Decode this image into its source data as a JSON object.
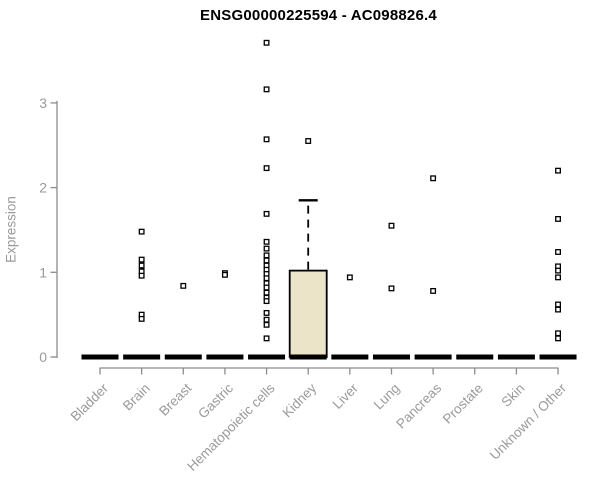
{
  "chart_data": {
    "type": "boxplot",
    "title": "ENSG00000225594 - AC098826.4",
    "ylabel": "Expression",
    "xlabel": "",
    "ylim": [
      0,
      3.75
    ],
    "yticks": [
      0,
      1,
      2,
      3
    ],
    "grid": false,
    "legend": "none",
    "categories": [
      "Bladder",
      "Brain",
      "Breast",
      "Gastric",
      "Hematopoietic cells",
      "Kidney",
      "Liver",
      "Lung",
      "Pancreas",
      "Prostate",
      "Skin",
      "Unknown / Other"
    ],
    "series": [
      {
        "category": "Bladder",
        "q1": 0,
        "median": 0,
        "q3": 0,
        "whisker_low": 0,
        "whisker_high": 0,
        "outliers": []
      },
      {
        "category": "Brain",
        "q1": 0,
        "median": 0,
        "q3": 0,
        "whisker_low": 0,
        "whisker_high": 0,
        "outliers": [
          1.48,
          1.15,
          1.08,
          1.01,
          0.96,
          0.5,
          0.45
        ]
      },
      {
        "category": "Breast",
        "q1": 0,
        "median": 0,
        "q3": 0,
        "whisker_low": 0,
        "whisker_high": 0,
        "outliers": [
          0.84
        ]
      },
      {
        "category": "Gastric",
        "q1": 0,
        "median": 0,
        "q3": 0,
        "whisker_low": 0,
        "whisker_high": 0,
        "outliers": [
          0.99,
          0.97
        ]
      },
      {
        "category": "Hematopoietic cells",
        "q1": 0,
        "median": 0,
        "q3": 0,
        "whisker_low": 0,
        "whisker_high": 0,
        "outliers": [
          3.71,
          3.16,
          2.57,
          2.23,
          1.69,
          1.36,
          1.28,
          1.2,
          1.14,
          1.08,
          1.03,
          0.98,
          0.93,
          0.87,
          0.82,
          0.76,
          0.7,
          0.66,
          0.52,
          0.44,
          0.38,
          0.22
        ]
      },
      {
        "category": "Kidney",
        "q1": 0,
        "median": 0,
        "q3": 1.02,
        "whisker_low": 0,
        "whisker_high": 1.85,
        "outliers": [
          2.55
        ]
      },
      {
        "category": "Liver",
        "q1": 0,
        "median": 0,
        "q3": 0,
        "whisker_low": 0,
        "whisker_high": 0,
        "outliers": [
          0.94
        ]
      },
      {
        "category": "Lung",
        "q1": 0,
        "median": 0,
        "q3": 0,
        "whisker_low": 0,
        "whisker_high": 0,
        "outliers": [
          1.55,
          0.81
        ]
      },
      {
        "category": "Pancreas",
        "q1": 0,
        "median": 0,
        "q3": 0,
        "whisker_low": 0,
        "whisker_high": 0,
        "outliers": [
          2.11,
          0.78
        ]
      },
      {
        "category": "Prostate",
        "q1": 0,
        "median": 0,
        "q3": 0,
        "whisker_low": 0,
        "whisker_high": 0,
        "outliers": []
      },
      {
        "category": "Skin",
        "q1": 0,
        "median": 0,
        "q3": 0,
        "whisker_low": 0,
        "whisker_high": 0,
        "outliers": []
      },
      {
        "category": "Unknown / Other",
        "q1": 0,
        "median": 0,
        "q3": 0,
        "whisker_low": 0,
        "whisker_high": 0,
        "outliers": [
          2.2,
          1.63,
          1.24,
          1.07,
          1.02,
          0.94,
          0.62,
          0.56,
          0.28,
          0.22
        ]
      }
    ],
    "style": {
      "box_fill": "#ece4c9",
      "box_border": "#000000",
      "median_color": "#000000",
      "whisker_color": "#000000",
      "outlier_fill": "#ffffff",
      "outlier_border": "#000000",
      "axis_color": "#8c8c8c",
      "label_color": "#9a9a9a",
      "title_color": "#000000",
      "background": "#ffffff"
    }
  }
}
